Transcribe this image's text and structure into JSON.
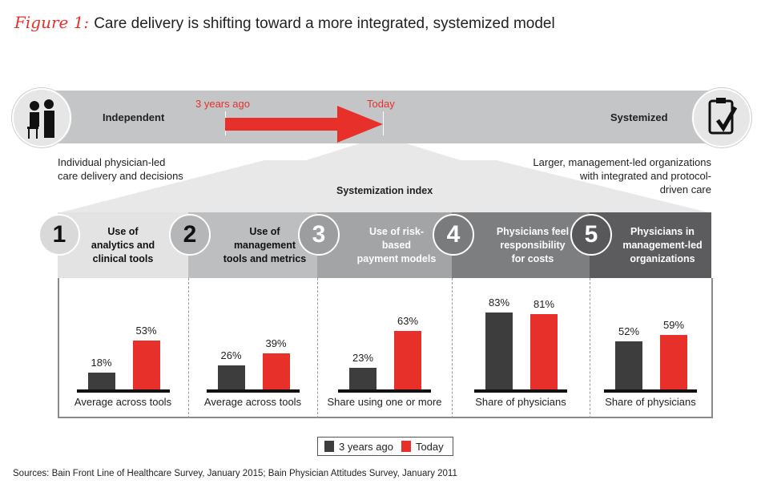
{
  "figure_label": "Figure 1:",
  "title": "Care delivery is shifting toward a more integrated, systemized model",
  "scale": {
    "left": "Independent",
    "right": "Systemized",
    "from": "3 years ago",
    "to": "Today",
    "left_desc": [
      "Individual physician-led",
      "care delivery and decisions"
    ],
    "right_desc": [
      "Larger, management-led organizations",
      "with integrated and protocol-",
      "driven care"
    ]
  },
  "index_label": "Systemization index",
  "colors": {
    "past": "#3d3d3e",
    "today": "#e8302a"
  },
  "chart_data": {
    "type": "bar",
    "title": "Systemization index",
    "categories": [
      {
        "num": "1",
        "title": [
          "Use of",
          "analytics and",
          "clinical tools"
        ],
        "sub": "Average across tools"
      },
      {
        "num": "2",
        "title": [
          "Use of",
          "management",
          "tools and metrics"
        ],
        "sub": "Average across tools"
      },
      {
        "num": "3",
        "title": [
          "Use of risk-",
          "based",
          "payment models"
        ],
        "sub": "Share using one or more"
      },
      {
        "num": "4",
        "title": [
          "Physicians feel",
          "responsibility",
          "for costs"
        ],
        "sub": "Share of physicians"
      },
      {
        "num": "5",
        "title": [
          "Physicians in",
          "management-led",
          "organizations"
        ],
        "sub": "Share of physicians"
      }
    ],
    "series": [
      {
        "name": "3 years ago",
        "values": [
          18,
          26,
          23,
          83,
          52
        ]
      },
      {
        "name": "Today",
        "values": [
          53,
          39,
          63,
          81,
          59
        ]
      }
    ],
    "unit": "%",
    "ylim": [
      0,
      100
    ]
  },
  "legend": [
    "3 years ago",
    "Today"
  ],
  "source": "Sources: Bain Front Line of Healthcare Survey, January 2015; Bain Physician Attitudes Survey, January 2011"
}
